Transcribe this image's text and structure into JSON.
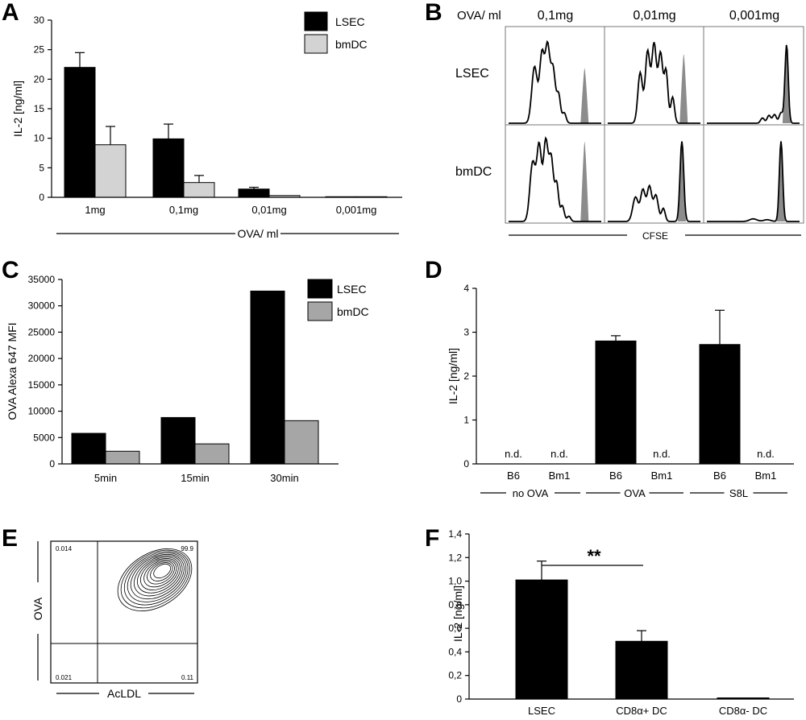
{
  "colors": {
    "lsec": "#000000",
    "bmdc_light": "#d3d3d3",
    "bmdc_mid": "#a6a6a6",
    "shaded_peak": "#8c8c8c"
  },
  "panel_letters": {
    "a": "A",
    "b": "B",
    "c": "C",
    "d": "D",
    "e": "E",
    "f": "F"
  },
  "chart_data": [
    {
      "id": "A",
      "type": "bar",
      "categories": [
        "1mg",
        "0,1mg",
        "0,01mg",
        "0,001mg"
      ],
      "series": [
        {
          "name": "LSEC",
          "values": [
            22,
            9.9,
            1.4,
            0.1
          ],
          "errors": [
            2.5,
            2.5,
            0.3,
            0
          ]
        },
        {
          "name": "bmDC",
          "values": [
            8.9,
            2.5,
            0.3,
            0.1
          ],
          "errors": [
            3.1,
            1.2,
            0,
            0
          ]
        }
      ],
      "ylabel": "IL-2 [ng/ml]",
      "group_label": "OVA/ ml",
      "ylim": [
        0,
        30
      ],
      "yticks": [
        "0",
        "5",
        "10",
        "15",
        "20",
        "25",
        "30"
      ],
      "legend": "top-right"
    },
    {
      "id": "B",
      "type": "histogram-grid",
      "header_label": "OVA/ ml",
      "columns": [
        "0,1mg",
        "0,01mg",
        "0,001mg"
      ],
      "rows": [
        "LSEC",
        "bmDC"
      ],
      "xlabel": "CFSE"
    },
    {
      "id": "C",
      "type": "bar",
      "categories": [
        "5min",
        "15min",
        "30min"
      ],
      "series": [
        {
          "name": "LSEC",
          "values": [
            5800,
            8800,
            32800
          ]
        },
        {
          "name": "bmDC",
          "values": [
            2400,
            3800,
            8200
          ]
        }
      ],
      "ylabel": "OVA Alexa 647 MFI",
      "ylim": [
        0,
        35000
      ],
      "yticks": [
        "0",
        "5000",
        "10000",
        "15000",
        "20000",
        "25000",
        "30000",
        "35000"
      ],
      "legend": "top-right"
    },
    {
      "id": "D",
      "type": "bar",
      "categories": [
        "B6",
        "Bm1",
        "B6",
        "Bm1",
        "B6",
        "Bm1"
      ],
      "values": [
        null,
        null,
        2.8,
        null,
        2.72,
        null
      ],
      "errors": [
        0,
        0,
        0.12,
        0,
        0.78,
        0
      ],
      "bar_labels": [
        "n.d.",
        "n.d.",
        "",
        "n.d.",
        "",
        "n.d."
      ],
      "groups": [
        "no OVA",
        "OVA",
        "S8L"
      ],
      "ylabel": "IL-2 [ng/ml]",
      "ylim": [
        0,
        4
      ],
      "yticks": [
        "0",
        "1",
        "2",
        "3",
        "4"
      ]
    },
    {
      "id": "E",
      "type": "contour-plot",
      "xlabel": "AcLDL",
      "ylabel": "OVA",
      "quadrants": {
        "top_left": "0.014",
        "top_right": "99.9",
        "bottom_left": "0.021",
        "bottom_right": "0.11"
      }
    },
    {
      "id": "F",
      "type": "bar",
      "categories": [
        "LSEC",
        "CD8α+ DC",
        "CD8α- DC"
      ],
      "values": [
        1.01,
        0.49,
        0.01
      ],
      "errors": [
        0.16,
        0.09,
        0
      ],
      "ylabel": "IL-2 [ng/ml]",
      "ylim": [
        0,
        1.4
      ],
      "yticks": [
        "0",
        "0,2",
        "0,4",
        "0,6",
        "0,8",
        "1,0",
        "1,2",
        "1,4"
      ],
      "significance": "**"
    }
  ]
}
